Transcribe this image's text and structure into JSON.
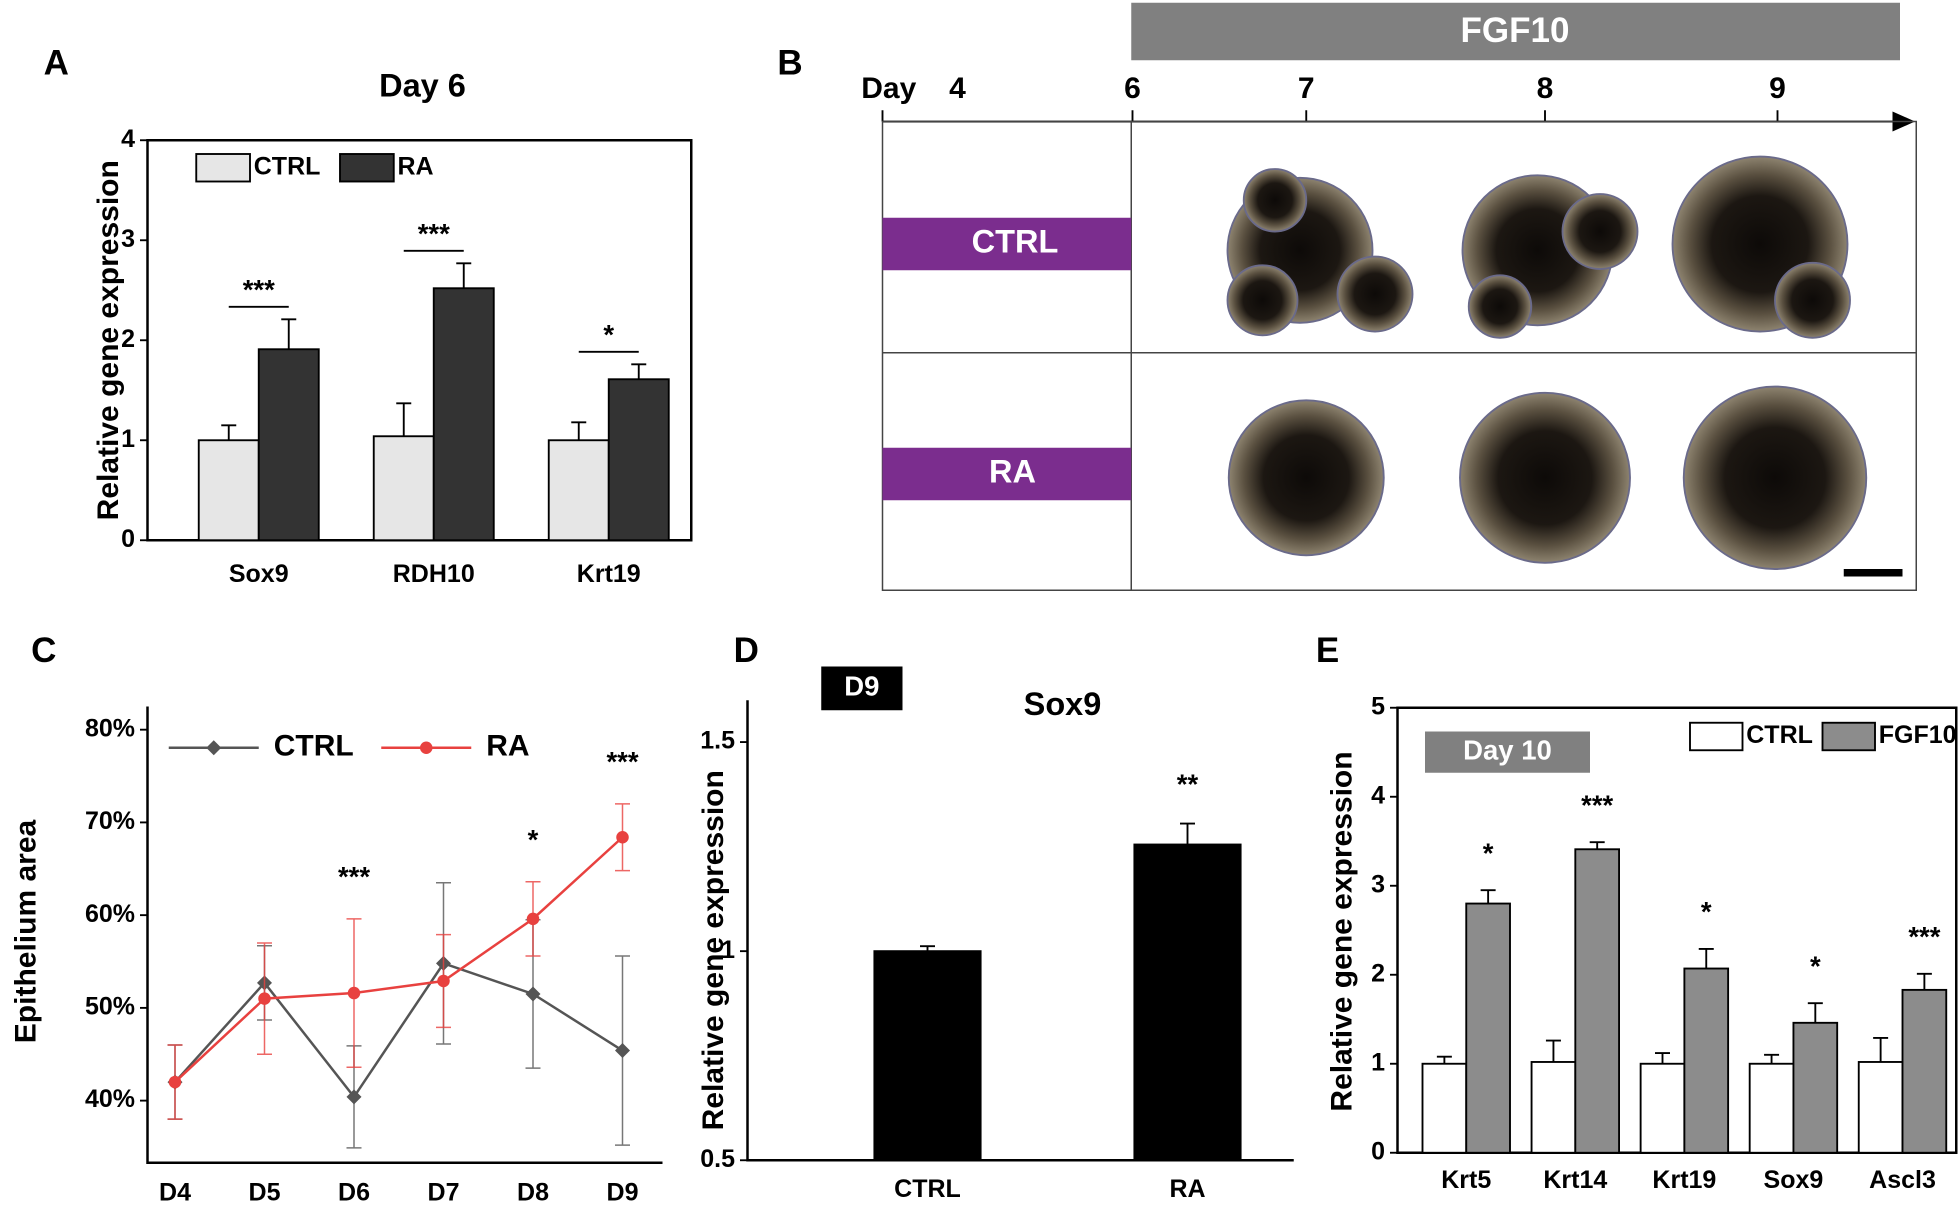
{
  "chart_data": [
    {
      "panel": "A",
      "type": "bar",
      "title": "Day 6",
      "y_label": "Relative gene expression",
      "categories": [
        "Sox9",
        "RDH10",
        "Krt19"
      ],
      "series": [
        {
          "name": "CTRL",
          "color": "#e6e6e6",
          "values": [
            1.0,
            1.04,
            1.0
          ],
          "errors": [
            0.15,
            0.33,
            0.18
          ]
        },
        {
          "name": "RA",
          "color": "#333333",
          "values": [
            1.91,
            2.52,
            1.61
          ],
          "errors": [
            0.3,
            0.25,
            0.15
          ]
        }
      ],
      "ylim": [
        0,
        4
      ],
      "yticks": [
        0,
        1,
        2,
        3,
        4
      ],
      "legend": "upper left",
      "annotations": [
        "***",
        "***",
        "*"
      ]
    },
    {
      "panel": "C",
      "type": "line",
      "y_label": "Epithelium area",
      "categories": [
        "D4",
        "D5",
        "D6",
        "D7",
        "D8",
        "D9"
      ],
      "series": [
        {
          "name": "CTRL",
          "color": "#555555",
          "marker": "diamond",
          "values": [
            42,
            52.7,
            40.4,
            54.8,
            51.5,
            45.4
          ],
          "errors": [
            4,
            4,
            5.5,
            8.7,
            8,
            10.2
          ]
        },
        {
          "name": "RA",
          "color": "#e8413f",
          "marker": "circle",
          "values": [
            42,
            51,
            51.6,
            52.9,
            59.6,
            68.4
          ],
          "errors": [
            4,
            6,
            8,
            5,
            4,
            3.6
          ]
        }
      ],
      "ylim": [
        33.3,
        82.5
      ],
      "yticks": [
        {
          "value": 40,
          "label": "40%"
        },
        {
          "value": 50,
          "label": "50%"
        },
        {
          "value": 60,
          "label": "60%"
        },
        {
          "value": 70,
          "label": "70%"
        },
        {
          "value": 80,
          "label": "80%"
        }
      ],
      "legend": "upper left",
      "annotations": [
        null,
        null,
        "***",
        null,
        "*",
        "***"
      ]
    },
    {
      "panel": "D",
      "type": "bar",
      "title": "Sox9",
      "tag": "D9",
      "y_label": "Relative gene expression",
      "categories": [
        "CTRL",
        "RA"
      ],
      "series": [
        {
          "color": "#000000",
          "values": [
            1.0,
            1.255
          ],
          "errors": [
            0.012,
            0.05
          ]
        }
      ],
      "ylim": [
        0.5,
        1.6
      ],
      "yticks": [
        0.5,
        1.0,
        1.5
      ],
      "annotations": [
        null,
        "**"
      ]
    },
    {
      "panel": "E",
      "type": "bar",
      "tag": "Day 10",
      "y_label": "Relative gene expression",
      "categories": [
        "Krt5",
        "Krt14",
        "Krt19",
        "Sox9",
        "Ascl3"
      ],
      "series": [
        {
          "name": "CTRL",
          "color": "#ffffff",
          "values": [
            1.0,
            1.02,
            1.0,
            1.0,
            1.02
          ],
          "errors": [
            0.08,
            0.24,
            0.12,
            0.1,
            0.27
          ]
        },
        {
          "name": "FGF10",
          "color": "#8c8c8c",
          "values": [
            2.8,
            3.41,
            2.07,
            1.46,
            1.83
          ],
          "errors": [
            0.15,
            0.08,
            0.22,
            0.22,
            0.18
          ]
        }
      ],
      "ylim": [
        0,
        5
      ],
      "yticks": [
        0,
        1,
        2,
        3,
        4,
        5
      ],
      "legend": "upper right",
      "annotations": [
        "*",
        "***",
        "*",
        "*",
        "***"
      ]
    }
  ],
  "panel_b": {
    "panel": "B",
    "treatment": "FGF10",
    "day_label": "Day",
    "days": [
      "4",
      "6",
      "7",
      "8",
      "9"
    ],
    "rows": [
      "CTRL",
      "RA"
    ]
  }
}
